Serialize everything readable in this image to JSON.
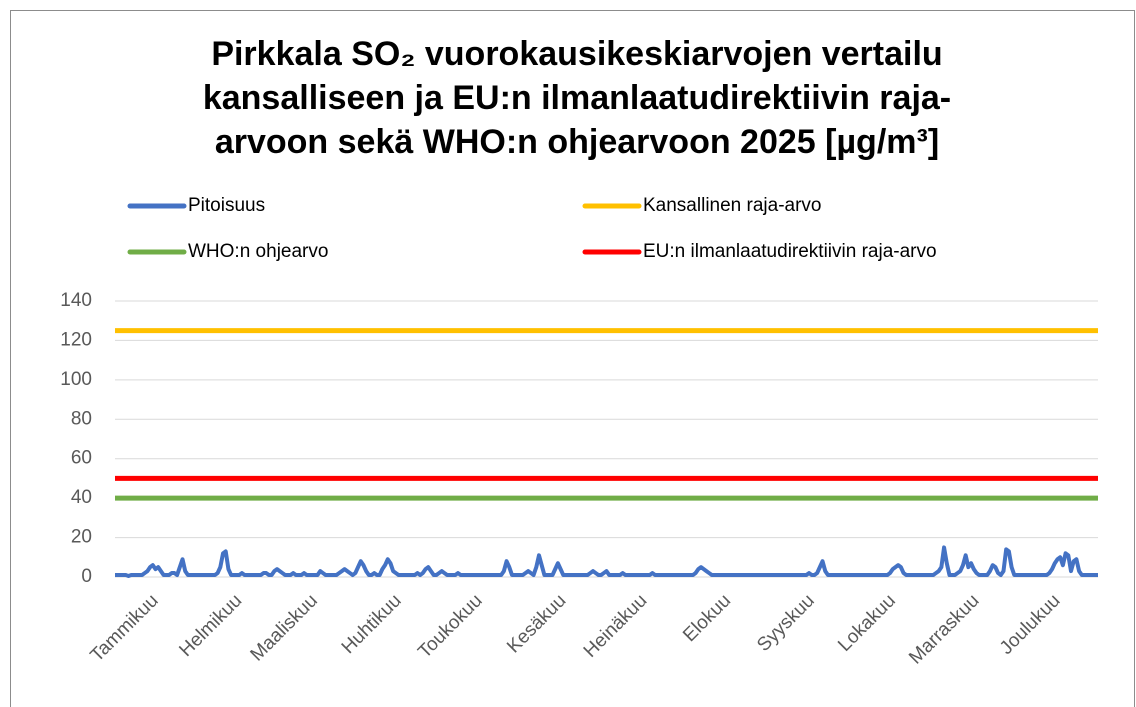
{
  "chart_data": {
    "type": "line",
    "title": [
      "Pirkkala SO₂ vuorokausikeskiarvojen vertailu",
      "kansalliseen ja EU:n ilmanlaatudirektiivin raja-",
      "arvoon sekä WHO:n ohjearvoon 2025 [µg/m³]"
    ],
    "series": [
      {
        "name": "Pitoisuus",
        "color": "#4472c4",
        "values": [
          1,
          1,
          1,
          1,
          1,
          0.5,
          1,
          1,
          1,
          1,
          1,
          2,
          3,
          5,
          6,
          4,
          5,
          3,
          1,
          1,
          1,
          2,
          2,
          1,
          5,
          9,
          3,
          1,
          1,
          1,
          1,
          1,
          1,
          1,
          1,
          1,
          1,
          1,
          2,
          5,
          12,
          13,
          4,
          1,
          1,
          1,
          1,
          2,
          1,
          1,
          1,
          1,
          1,
          1,
          1,
          2,
          2,
          1,
          1,
          3,
          4,
          3,
          2,
          1,
          1,
          1,
          2,
          1,
          1,
          1,
          2,
          1,
          1,
          1,
          1,
          1,
          3,
          2,
          1,
          1,
          1,
          1,
          1,
          2,
          3,
          4,
          3,
          2,
          1,
          2,
          5,
          8,
          6,
          3,
          1,
          1,
          2,
          1,
          1,
          4,
          6,
          9,
          7,
          3,
          2,
          1,
          1,
          1,
          1,
          1,
          1,
          1,
          2,
          1,
          2,
          4,
          5,
          3,
          1,
          1,
          2,
          3,
          2,
          1,
          1,
          1,
          1,
          2,
          1,
          1,
          1,
          1,
          1,
          1,
          1,
          1,
          1,
          1,
          1,
          1,
          1,
          1,
          1,
          1,
          3,
          8,
          5,
          1,
          1,
          1,
          1,
          1,
          2,
          3,
          2,
          1,
          5,
          11,
          6,
          1,
          1,
          1,
          1,
          4,
          7,
          4,
          1,
          1,
          1,
          1,
          1,
          1,
          1,
          1,
          1,
          1,
          2,
          3,
          2,
          1,
          1,
          2,
          3,
          1,
          1,
          1,
          1,
          1,
          2,
          1,
          1,
          1,
          1,
          1,
          1,
          1,
          1,
          1,
          1,
          2,
          1,
          1,
          1,
          1,
          1,
          1,
          1,
          1,
          1,
          1,
          1,
          1,
          1,
          1,
          1,
          2,
          4,
          5,
          4,
          3,
          2,
          1,
          1,
          1,
          1,
          1,
          1,
          1,
          1,
          1,
          1,
          1,
          1,
          1,
          1,
          1,
          1,
          1,
          1,
          1,
          1,
          1,
          1,
          1,
          1,
          1,
          1,
          1,
          1,
          1,
          1,
          1,
          1,
          1,
          1,
          1,
          1,
          2,
          1,
          1,
          2,
          5,
          8,
          3,
          1,
          1,
          1,
          1,
          1,
          1,
          1,
          1,
          1,
          1,
          1,
          1,
          1,
          1,
          1,
          1,
          1,
          1,
          1,
          1,
          1,
          1,
          1,
          2,
          4,
          5,
          6,
          5,
          2,
          1,
          1,
          1,
          1,
          1,
          1,
          1,
          1,
          1,
          1,
          1,
          2,
          3,
          5,
          15,
          7,
          1,
          1,
          1,
          2,
          3,
          6,
          11,
          5,
          7,
          4,
          2,
          1,
          1,
          1,
          1,
          3,
          6,
          5,
          2,
          1,
          3,
          14,
          13,
          5,
          1,
          1,
          1,
          1,
          1,
          1,
          1,
          1,
          1,
          1,
          1,
          1,
          1,
          2,
          4,
          7,
          9,
          10,
          6,
          12,
          11,
          3,
          8,
          9,
          3,
          1,
          1,
          1,
          1,
          1,
          1,
          1
        ]
      },
      {
        "name": "Kansallinen raja-arvo",
        "color": "#ffc000",
        "value": 125
      },
      {
        "name": "WHO:n ohjearvo",
        "color": "#70ad47",
        "value": 40
      },
      {
        "name": "EU:n ilmanlaatudirektiivin raja-arvo",
        "color": "#ff0000",
        "value": 50
      }
    ],
    "xlim": [
      0,
      364
    ],
    "xticks": [
      {
        "value": 15,
        "label": "Tammikuu"
      },
      {
        "value": 46,
        "label": "Helmikuu"
      },
      {
        "value": 74,
        "label": "Maaliskuu"
      },
      {
        "value": 105,
        "label": "Huhtikuu"
      },
      {
        "value": 135,
        "label": "Toukokuu"
      },
      {
        "value": 166,
        "label": "Kesäkuu"
      },
      {
        "value": 196,
        "label": "Heinäkuu"
      },
      {
        "value": 227,
        "label": "Elokuu"
      },
      {
        "value": 258,
        "label": "Syyskuu"
      },
      {
        "value": 288,
        "label": "Lokakuu"
      },
      {
        "value": 319,
        "label": "Marraskuu"
      },
      {
        "value": 349,
        "label": "Joulukuu"
      }
    ],
    "ylim": [
      0,
      140
    ],
    "yticks": [
      0,
      20,
      40,
      60,
      80,
      100,
      120,
      140
    ],
    "grid": true
  }
}
